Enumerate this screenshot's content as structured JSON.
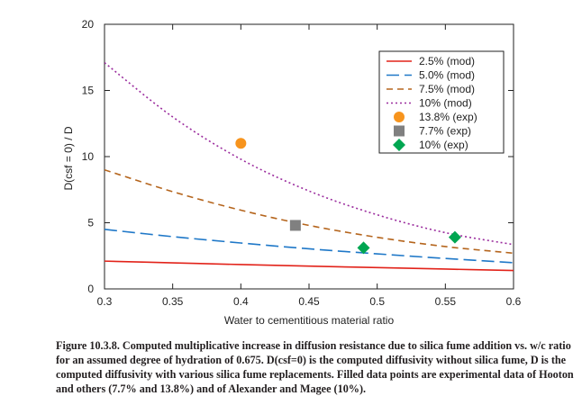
{
  "chart_data": {
    "type": "line",
    "title": "",
    "xlabel": "Water to cementitious material ratio",
    "ylabel": "D(csf = 0) / D",
    "xlim": [
      0.3,
      0.6
    ],
    "ylim": [
      0,
      20
    ],
    "xticks": [
      "0.3",
      "0.35",
      "0.4",
      "0.45",
      "0.5",
      "0.55",
      "0.6"
    ],
    "yticks": [
      "0",
      "5",
      "10",
      "15",
      "20"
    ],
    "grid": false,
    "legend_position": "top-right",
    "series": [
      {
        "name": "2.5% (mod)",
        "kind": "line",
        "color": "#e2231a",
        "dash": "solid",
        "x": [
          0.3,
          0.35,
          0.4,
          0.45,
          0.5,
          0.55,
          0.6
        ],
        "y": [
          2.1,
          1.97,
          1.84,
          1.72,
          1.61,
          1.5,
          1.39
        ]
      },
      {
        "name": "5.0% (mod)",
        "kind": "line",
        "color": "#1f78c8",
        "dash": "long-dash",
        "x": [
          0.3,
          0.35,
          0.4,
          0.45,
          0.5,
          0.55,
          0.6
        ],
        "y": [
          4.5,
          3.95,
          3.47,
          3.03,
          2.65,
          2.3,
          1.98
        ]
      },
      {
        "name": "7.5% (mod)",
        "kind": "line",
        "color": "#b5651d",
        "dash": "dash",
        "x": [
          0.3,
          0.35,
          0.4,
          0.45,
          0.5,
          0.55,
          0.6
        ],
        "y": [
          9.0,
          7.35,
          5.95,
          4.8,
          3.9,
          3.2,
          2.7
        ]
      },
      {
        "name": "10% (mod)",
        "kind": "line",
        "color": "#9b2d9e",
        "dash": "dot",
        "x": [
          0.3,
          0.35,
          0.4,
          0.45,
          0.5,
          0.55,
          0.6
        ],
        "y": [
          17.1,
          13.0,
          9.8,
          7.4,
          5.6,
          4.25,
          3.35
        ]
      },
      {
        "name": "13.8% (exp)",
        "kind": "marker",
        "marker": "circle",
        "color": "#f7941d",
        "x": [
          0.4
        ],
        "y": [
          11.0
        ]
      },
      {
        "name": "7.7% (exp)",
        "kind": "marker",
        "marker": "square",
        "color": "#808080",
        "x": [
          0.44
        ],
        "y": [
          4.8
        ]
      },
      {
        "name": "10% (exp)",
        "kind": "marker",
        "marker": "diamond",
        "color": "#00a651",
        "x": [
          0.49,
          0.557
        ],
        "y": [
          3.1,
          3.9
        ]
      }
    ]
  },
  "caption": "Figure 10.3.8. Computed multiplicative increase in diffusion resistance due to silica fume addition vs. w/c ratio for an assumed degree of hydration of 0.675. D(csf=0) is the computed diffusivity without silica fume, D is the computed diffusivity with various silica fume replacements. Filled data points are experimental data of Hooton and others (7.7% and 13.8%) and of Alexander and Magee (10%)."
}
